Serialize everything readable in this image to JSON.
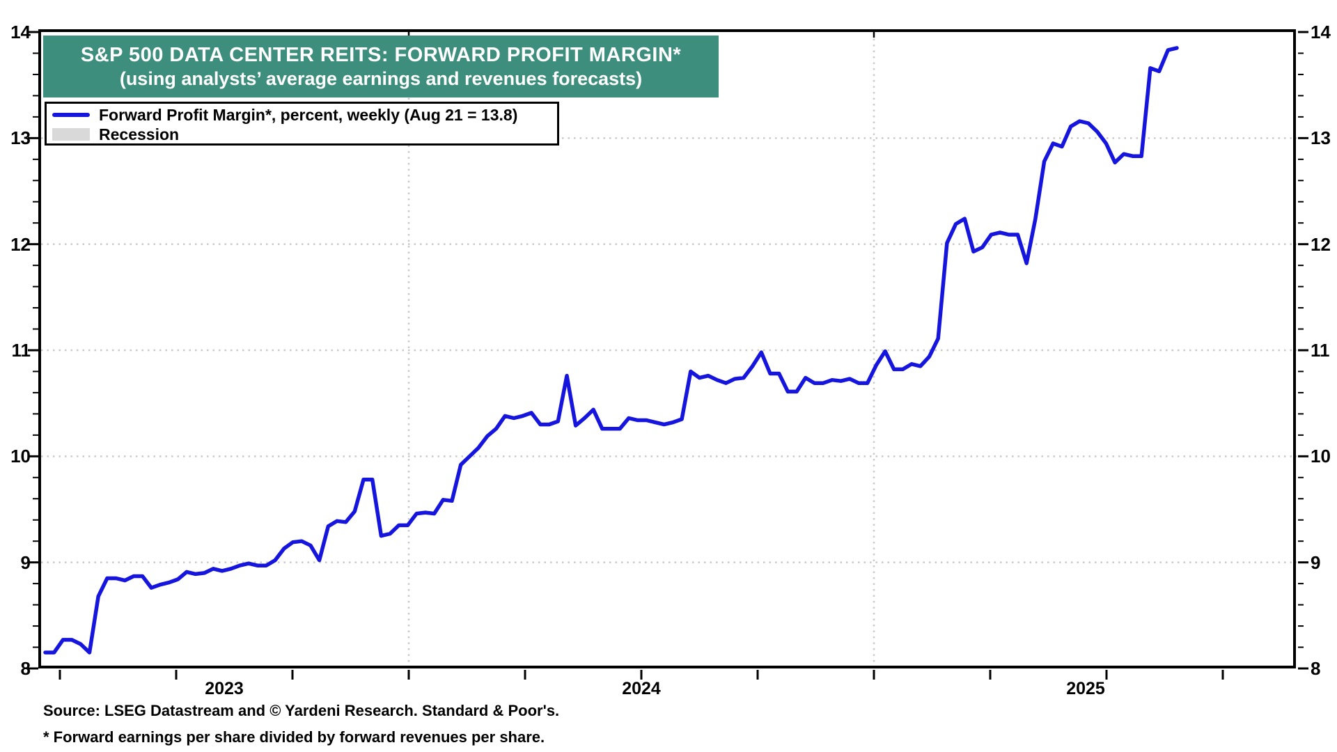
{
  "header": {
    "title": "S&P 500 DATA CENTER REITS: FORWARD PROFIT MARGIN*",
    "subtitle": "(using analysts’ average earnings and revenues forecasts)"
  },
  "legend": {
    "series_label": "Forward Profit Margin*, percent, weekly (Aug 21 = 13.8)",
    "recession_label": "Recession"
  },
  "footer": {
    "source": "Source: LSEG Datastream and © Yardeni Research. Standard & Poor's.",
    "footnote": "* Forward earnings per share divided by forward revenues per share."
  },
  "colors": {
    "accent_teal": "#3E8E7E",
    "line_blue": "#1515DD",
    "recession_gray": "#D9D9D9",
    "grid_gray": "#C9C9C9",
    "axis_black": "#000000"
  },
  "axes": {
    "y_tick_labels": [
      "14",
      "13",
      "12",
      "11",
      "10",
      "9",
      "8"
    ],
    "y_min": 8,
    "y_max": 14,
    "y_minor_step": 0.2,
    "x_year_labels": [
      "2023",
      "2024",
      "2025"
    ]
  },
  "chart_data": {
    "type": "line",
    "title": "S&P 500 Data Center REITs: Forward Profit Margin",
    "series_name": "Forward Profit Margin, percent, weekly",
    "frequency": "weekly",
    "unit": "percent",
    "start_date": "2023-03-23",
    "end_date": "2025-08-21",
    "last_point_label": "Aug 21 = 13.8",
    "ylim": [
      8,
      14
    ],
    "grid": "dotted horizontal at integers, dashed vertical at year starts",
    "legend_position": "top-left",
    "values": [
      8.15,
      8.15,
      8.27,
      8.27,
      8.23,
      8.15,
      8.68,
      8.85,
      8.85,
      8.83,
      8.87,
      8.87,
      8.76,
      8.79,
      8.81,
      8.84,
      8.91,
      8.89,
      8.9,
      8.94,
      8.92,
      8.94,
      8.97,
      8.99,
      8.97,
      8.97,
      9.02,
      9.13,
      9.19,
      9.2,
      9.16,
      9.02,
      9.34,
      9.39,
      9.38,
      9.48,
      9.78,
      9.78,
      9.25,
      9.27,
      9.35,
      9.35,
      9.46,
      9.47,
      9.46,
      9.59,
      9.58,
      9.92,
      10.0,
      10.08,
      10.19,
      10.26,
      10.38,
      10.36,
      10.38,
      10.41,
      10.3,
      10.3,
      10.33,
      10.76,
      10.29,
      10.36,
      10.44,
      10.26,
      10.26,
      10.26,
      10.36,
      10.34,
      10.34,
      10.32,
      10.3,
      10.32,
      10.35,
      10.8,
      10.74,
      10.76,
      10.72,
      10.69,
      10.73,
      10.74,
      10.85,
      10.98,
      10.78,
      10.78,
      10.61,
      10.61,
      10.74,
      10.69,
      10.69,
      10.72,
      10.71,
      10.73,
      10.69,
      10.69,
      10.86,
      10.99,
      10.82,
      10.82,
      10.87,
      10.85,
      10.94,
      11.11,
      12.01,
      12.19,
      12.24,
      11.93,
      11.97,
      12.09,
      12.11,
      12.09,
      12.09,
      11.82,
      12.24,
      12.78,
      12.95,
      12.92,
      13.11,
      13.16,
      13.14,
      13.06,
      12.95,
      12.77,
      12.85,
      12.83,
      12.83,
      13.66,
      13.63,
      13.83,
      13.85
    ]
  }
}
